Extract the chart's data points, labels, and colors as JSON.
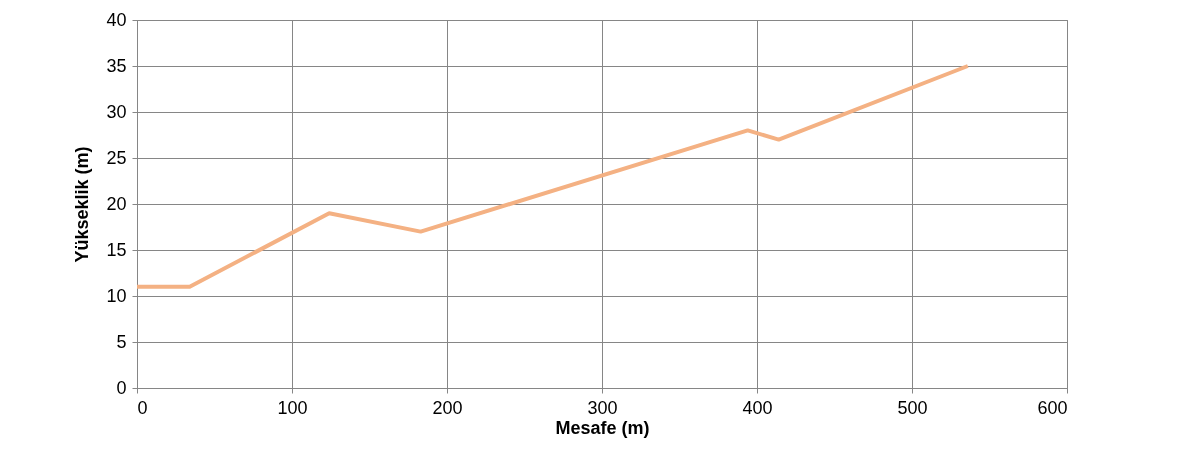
{
  "chart_data": {
    "type": "line",
    "xlabel": "Mesafe (m)",
    "ylabel": "Yükseklik (m)",
    "x": [
      0,
      34,
      124,
      183,
      394,
      414,
      536
    ],
    "series": [
      {
        "color": "#f4b183",
        "values": [
          11,
          11,
          19,
          17,
          28,
          27,
          35
        ]
      }
    ],
    "xlim": [
      0,
      600
    ],
    "xticks": [
      0,
      100,
      200,
      300,
      400,
      500,
      600
    ],
    "ylim": [
      0,
      40
    ],
    "yticks": [
      0,
      5,
      10,
      15,
      20,
      25,
      30,
      35,
      40
    ],
    "grid": true,
    "marker": "none",
    "line_style": "solid"
  }
}
